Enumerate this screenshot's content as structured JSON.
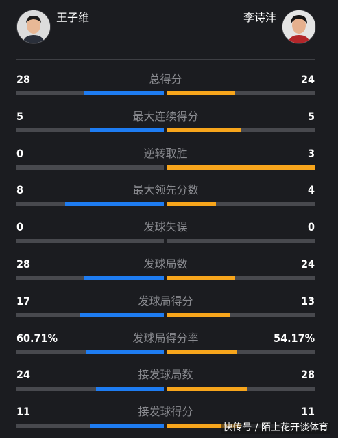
{
  "players": {
    "left": {
      "name": "王子维"
    },
    "right": {
      "name": "李诗沣"
    }
  },
  "colors": {
    "left_bar": "#1e7cf2",
    "right_bar": "#f7a51c",
    "track": "#48494e",
    "background": "#1b1c20"
  },
  "stats": [
    {
      "label": "总得分",
      "left": "28",
      "right": "24",
      "left_fraction": 0.54,
      "right_fraction": 0.46
    },
    {
      "label": "最大连续得分",
      "left": "5",
      "right": "5",
      "left_fraction": 0.5,
      "right_fraction": 0.5
    },
    {
      "label": "逆转取胜",
      "left": "0",
      "right": "3",
      "left_fraction": 0.0,
      "right_fraction": 1.0
    },
    {
      "label": "最大领先分数",
      "left": "8",
      "right": "4",
      "left_fraction": 0.67,
      "right_fraction": 0.33
    },
    {
      "label": "发球失误",
      "left": "0",
      "right": "0",
      "left_fraction": 0.0,
      "right_fraction": 0.0
    },
    {
      "label": "发球局数",
      "left": "28",
      "right": "24",
      "left_fraction": 0.54,
      "right_fraction": 0.46
    },
    {
      "label": "发球局得分",
      "left": "17",
      "right": "13",
      "left_fraction": 0.57,
      "right_fraction": 0.43
    },
    {
      "label": "发球局得分率",
      "left": "60.71%",
      "right": "54.17%",
      "left_fraction": 0.53,
      "right_fraction": 0.47
    },
    {
      "label": "接发球局数",
      "left": "24",
      "right": "28",
      "left_fraction": 0.46,
      "right_fraction": 0.54
    },
    {
      "label": "接发球得分",
      "left": "11",
      "right": "11",
      "left_fraction": 0.5,
      "right_fraction": 0.5
    }
  ],
  "watermark": "快传号 / 陌上花开谈体育"
}
